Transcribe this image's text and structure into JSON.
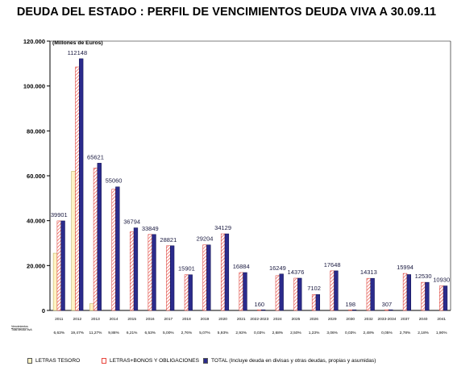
{
  "chart_data": {
    "type": "bar",
    "title": "DEUDA DEL ESTADO : PERFIL DE VENCIMIENTOS DEUDA VIVA A 30.09.11",
    "ylabel": "(Millones de Euros)",
    "ylim": [
      0,
      120000
    ],
    "yticks": [
      "0",
      "20.000",
      "40.000",
      "60.000",
      "80.000",
      "100.000",
      "120.000"
    ],
    "grid": false,
    "legend_position": "bottom",
    "categories": [
      "2011",
      "2012",
      "2013",
      "2014",
      "2015",
      "2016",
      "2017",
      "2018",
      "2019",
      "2020",
      "2021",
      "2022-2023",
      "2024",
      "2025",
      "2026",
      "2029",
      "2030",
      "2032",
      "2033-2034",
      "2037",
      "2040",
      "2041"
    ],
    "series": [
      {
        "name": "LETRAS TESORO",
        "color": "#fdf3c4",
        "values": [
          25500,
          62000,
          3000,
          0,
          0,
          0,
          0,
          0,
          0,
          0,
          0,
          0,
          0,
          0,
          0,
          0,
          0,
          0,
          0,
          0,
          0,
          0
        ]
      },
      {
        "name": "LETRAS+BONOS Y OBLIGACIONES",
        "color": "#ee6666",
        "values": [
          39901,
          108500,
          63500,
          54000,
          35000,
          33849,
          28821,
          15901,
          29204,
          34129,
          16884,
          160,
          15500,
          14376,
          7102,
          17648,
          198,
          14313,
          307,
          16500,
          12530,
          10930
        ]
      },
      {
        "name": "TOTAL (Incluye deuda en divisas y otras deudas, propias y asumidas)",
        "color": "#2b2b8c",
        "values": [
          39901,
          112148,
          65621,
          55060,
          36794,
          33849,
          28821,
          15901,
          29204,
          34129,
          16884,
          160,
          16249,
          14376,
          7102,
          17648,
          198,
          14313,
          307,
          15994,
          12530,
          10930
        ]
      }
    ],
    "data_labels": [
      "39901",
      "112148",
      "65621",
      "55060",
      "36794",
      "33849",
      "28821",
      "15901",
      "29204",
      "34129",
      "16884",
      "160",
      "16249",
      "14376",
      "7102",
      "17648",
      "198",
      "14313",
      "307",
      "15994",
      "12530",
      "10930"
    ],
    "percentages": [
      "6,63%",
      "19,47%",
      "11,27%",
      "9,88%",
      "6,21%",
      "6,53%",
      "5,00%",
      "2,76%",
      "5,07%",
      "5,93%",
      "2,93%",
      "0,03%",
      "2,68%",
      "2,50%",
      "1,23%",
      "3,06%",
      "0,03%",
      "2,48%",
      "0,05%",
      "2,78%",
      "2,18%",
      "1,90%"
    ],
    "footnote": [
      "Vencimientos",
      "Total deuda vivA"
    ]
  }
}
